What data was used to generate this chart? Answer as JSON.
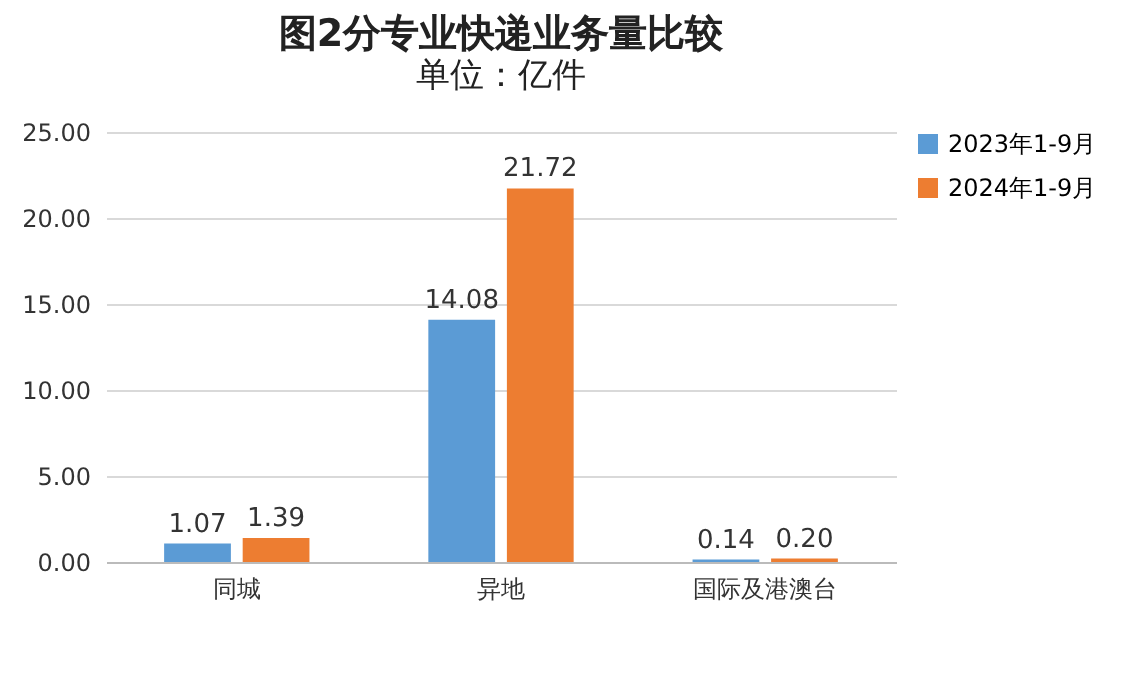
{
  "chart_data": {
    "type": "bar",
    "title": "图2分专业快递业务量比较",
    "subtitle": "单位：亿件",
    "categories": [
      "同城",
      "异地",
      "国际及港澳台"
    ],
    "series": [
      {
        "name": "2023年1-9月",
        "color": "#5b9bd5",
        "values": [
          1.07,
          14.08,
          0.14
        ],
        "value_labels": [
          "1.07",
          "14.08",
          "0.14"
        ]
      },
      {
        "name": "2024年1-9月",
        "color": "#ed7d31",
        "values": [
          1.39,
          21.72,
          0.2
        ],
        "value_labels": [
          "1.39",
          "21.72",
          "0.20"
        ]
      }
    ],
    "ylim": [
      0,
      25
    ],
    "yticks": [
      {
        "value": 0,
        "label": "0.00"
      },
      {
        "value": 5,
        "label": "5.00"
      },
      {
        "value": 10,
        "label": "10.00"
      },
      {
        "value": 15,
        "label": "15.00"
      },
      {
        "value": 20,
        "label": "20.00"
      },
      {
        "value": 25,
        "label": "25.00"
      }
    ],
    "grid": "y",
    "legend": "top right"
  }
}
